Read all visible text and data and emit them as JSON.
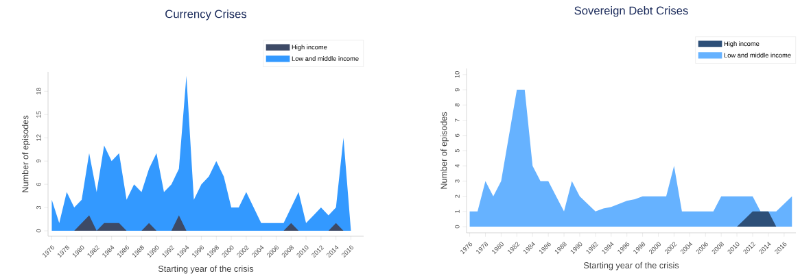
{
  "chart_data": [
    {
      "type": "area",
      "title": "Currency Crises",
      "xlabel": "Starting year of the crisis",
      "ylabel": "Number of episodes",
      "x": [
        1976,
        1977,
        1978,
        1979,
        1980,
        1981,
        1982,
        1983,
        1984,
        1985,
        1986,
        1987,
        1988,
        1989,
        1990,
        1991,
        1992,
        1993,
        1994,
        1995,
        1996,
        1997,
        1998,
        1999,
        2000,
        2001,
        2002,
        2003,
        2004,
        2005,
        2006,
        2007,
        2008,
        2009,
        2010,
        2011,
        2012,
        2013,
        2014,
        2015,
        2016
      ],
      "series": [
        {
          "name": "High income",
          "color": "#3d4a66",
          "values": [
            0,
            0,
            0,
            0,
            1,
            2,
            0,
            1,
            1,
            1,
            0,
            0,
            0,
            1,
            0,
            0,
            0,
            2,
            0,
            0,
            0,
            0,
            0,
            0,
            0,
            0,
            0,
            0,
            0,
            0,
            0,
            0,
            1,
            0,
            0,
            0,
            0,
            0,
            1,
            0,
            0
          ]
        },
        {
          "name": "Low and middle income",
          "color": "#3399ff",
          "values": [
            4,
            1,
            5,
            3,
            4,
            10,
            5,
            11,
            9,
            10,
            4,
            6,
            5,
            8,
            10,
            5,
            6,
            8,
            20,
            4,
            6,
            7,
            9,
            7,
            3,
            3,
            5,
            3,
            1,
            1,
            1,
            1,
            3,
            5,
            1,
            2,
            3,
            2,
            3,
            12,
            0
          ]
        }
      ],
      "xlim": [
        1975.5,
        2017.7
      ],
      "ylim": [
        -0.7,
        20.5
      ],
      "xticks": [
        1976,
        1978,
        1980,
        1982,
        1984,
        1986,
        1988,
        1990,
        1992,
        1994,
        1996,
        1998,
        2000,
        2002,
        2004,
        2006,
        2008,
        2010,
        2012,
        2014,
        2016
      ],
      "yticks": [
        0,
        3,
        6,
        9,
        12,
        15,
        18
      ],
      "legend": "top right",
      "grid": false
    },
    {
      "type": "area",
      "title": "Sovereign Debt Crises",
      "xlabel": "Starting year of the crisis",
      "ylabel": "Number of episodes",
      "x": [
        1976,
        1977,
        1978,
        1979,
        1980,
        1981,
        1982,
        1983,
        1984,
        1985,
        1986,
        1987,
        1988,
        1989,
        1990,
        1991,
        1992,
        1993,
        1994,
        1995,
        1996,
        1997,
        1998,
        1999,
        2000,
        2001,
        2002,
        2003,
        2004,
        2005,
        2006,
        2007,
        2008,
        2009,
        2010,
        2011,
        2012,
        2013,
        2014,
        2015,
        2016,
        2017
      ],
      "series": [
        {
          "name": "High income",
          "color": "#2d4f78",
          "values": [
            0,
            0,
            0,
            0,
            0,
            0,
            0,
            0,
            0,
            0,
            0,
            0,
            0,
            0,
            0,
            0,
            0,
            0,
            0,
            0,
            0,
            0,
            0,
            0,
            0,
            0,
            0,
            0,
            0,
            0,
            0,
            0,
            0,
            0,
            0,
            0.5,
            1,
            1,
            1,
            0,
            0,
            0
          ]
        },
        {
          "name": "Low and middle income",
          "color": "#66b2ff",
          "values": [
            1,
            1,
            3,
            2,
            3,
            6,
            9,
            9,
            4,
            3,
            3,
            2,
            1,
            3,
            2,
            1.5,
            1,
            1.2,
            1.3,
            1.5,
            1.7,
            1.8,
            2,
            2,
            2,
            2,
            4,
            1,
            1,
            1,
            1,
            1,
            2,
            2,
            2,
            2,
            2,
            1,
            1,
            1,
            1.5,
            2
          ]
        }
      ],
      "xlim": [
        1975.6,
        2017.5
      ],
      "ylim": [
        -0.4,
        10.4
      ],
      "xticks": [
        1976,
        1978,
        1980,
        1982,
        1984,
        1986,
        1988,
        1990,
        1992,
        1994,
        1996,
        1998,
        2000,
        2002,
        2004,
        2006,
        2008,
        2010,
        2012,
        2014,
        2016
      ],
      "yticks": [
        0,
        1,
        2,
        3,
        4,
        5,
        6,
        7,
        8,
        9,
        10
      ],
      "legend": "top right",
      "grid": false
    }
  ]
}
